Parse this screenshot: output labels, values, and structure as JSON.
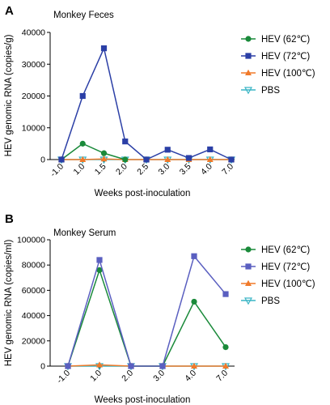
{
  "figure": {
    "panels": [
      {
        "letter": "A",
        "title": "Monkey Feces"
      },
      {
        "letter": "B",
        "title": "Monkey Serum"
      }
    ]
  },
  "chart_data": [
    {
      "type": "line",
      "title": "Monkey Feces",
      "xlabel": "Weeks post-inoculation",
      "ylabel": "HEV genomic RNA (copies/g)",
      "categories": [
        "-1.0",
        "1.0",
        "1.5",
        "2.0",
        "2.5",
        "3.0",
        "3.5",
        "4.0",
        "7.0"
      ],
      "ylim": [
        0,
        40000
      ],
      "yticks": [
        "0",
        "10000",
        "20000",
        "30000",
        "40000"
      ],
      "legend_position": "right",
      "series": [
        {
          "name": "HEV (62℃)",
          "color": "#1a8a3a",
          "marker": "circle",
          "values": [
            0,
            5000,
            2000,
            0,
            null,
            null,
            null,
            null,
            null
          ]
        },
        {
          "name": "HEV (72℃)",
          "color": "#2b3fa6",
          "marker": "square",
          "values": [
            0,
            20000,
            35000,
            5700,
            0,
            3100,
            500,
            3200,
            0
          ]
        },
        {
          "name": "HEV (100℃)",
          "color": "#f07a2a",
          "marker": "triangle-up",
          "values": [
            0,
            0,
            200,
            0,
            0,
            0,
            0,
            0,
            0
          ]
        },
        {
          "name": "PBS",
          "color": "#3ab5c5",
          "marker": "triangle-down-open",
          "values": [
            0,
            0,
            0,
            0,
            0,
            0,
            0,
            0,
            0
          ]
        }
      ]
    },
    {
      "type": "line",
      "title": "Monkey Serum",
      "xlabel": "Weeks post-inoculation",
      "ylabel": "HEV genomic RNA (copies/ml)",
      "categories": [
        "-1.0",
        "1.0",
        "2.0",
        "3.0",
        "4.0",
        "7.0"
      ],
      "ylim": [
        0,
        100000
      ],
      "yticks": [
        "0",
        "20000",
        "40000",
        "60000",
        "80000",
        "100000"
      ],
      "legend_position": "right",
      "series": [
        {
          "name": "HEV (62℃)",
          "color": "#1a8a3a",
          "marker": "circle",
          "values": [
            0,
            76000,
            0,
            0,
            51000,
            15000
          ]
        },
        {
          "name": "HEV (72℃)",
          "color": "#5a5fc0",
          "marker": "square",
          "values": [
            0,
            84000,
            0,
            0,
            87000,
            57000
          ]
        },
        {
          "name": "HEV (100℃)",
          "color": "#f07a2a",
          "marker": "triangle-up",
          "values": [
            0,
            1000,
            0,
            0,
            0,
            0
          ]
        },
        {
          "name": "PBS",
          "color": "#3ab5c5",
          "marker": "triangle-down-open",
          "values": [
            0,
            0,
            0,
            0,
            0,
            0
          ]
        }
      ]
    }
  ]
}
